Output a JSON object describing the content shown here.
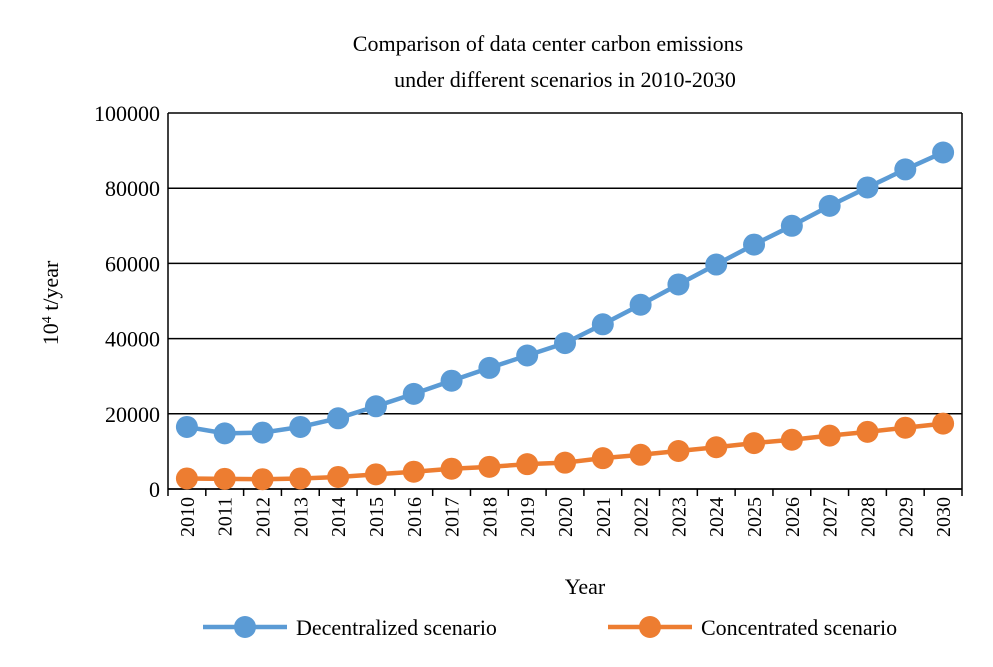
{
  "chart_data": {
    "type": "line",
    "title_lines": [
      "Comparison of data center carbon emissions",
      "under different scenarios in 2010-2030"
    ],
    "xlabel": "Year",
    "ylabel": {
      "base": "10",
      "sup": "4",
      "rest": " t/year"
    },
    "ylim": [
      0,
      100000
    ],
    "yticks": [
      "0",
      "20000",
      "40000",
      "60000",
      "80000",
      "100000"
    ],
    "ytick_values": [
      0,
      20000,
      40000,
      60000,
      80000,
      100000
    ],
    "grid": true,
    "categories": [
      "2010",
      "2011",
      "2012",
      "2013",
      "2014",
      "2015",
      "2016",
      "2017",
      "2018",
      "2019",
      "2020",
      "2021",
      "2022",
      "2023",
      "2024",
      "2025",
      "2026",
      "2027",
      "2028",
      "2029",
      "2030"
    ],
    "series": [
      {
        "name": "Decentralized scenario",
        "color": "#5B9BD5",
        "values": [
          16500,
          14800,
          15000,
          16500,
          18800,
          22000,
          25300,
          28800,
          32200,
          35500,
          38800,
          43800,
          49000,
          54400,
          59700,
          65000,
          70000,
          75300,
          80200,
          85000,
          89500
        ]
      },
      {
        "name": "Concentrated scenario",
        "color": "#ED7D31",
        "values": [
          2800,
          2700,
          2600,
          2800,
          3200,
          3900,
          4600,
          5400,
          5900,
          6600,
          7000,
          8200,
          9100,
          10100,
          11100,
          12200,
          13100,
          14200,
          15200,
          16300,
          17400
        ]
      }
    ],
    "legend_position": "bottom"
  }
}
